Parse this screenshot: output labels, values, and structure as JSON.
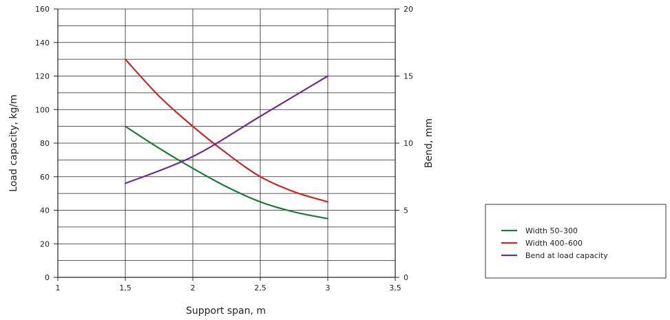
{
  "chart_data": {
    "type": "line",
    "xlabel": "Support span, m",
    "ylabel_left": "Load capacity, kg/m",
    "ylabel_right": "Bend, mm",
    "x_ticks": [
      1,
      1.5,
      2,
      2.5,
      3,
      3.5
    ],
    "x_tick_labels": [
      "1",
      "1,5",
      "2",
      "2,5",
      "3",
      "3,5"
    ],
    "xlim": [
      1,
      3.5
    ],
    "ylim_left": [
      0,
      160
    ],
    "y_left_ticks": [
      0,
      20,
      40,
      60,
      80,
      100,
      120,
      140,
      160
    ],
    "y_left_tick_labels": [
      "0",
      "20",
      "40",
      "60",
      "80",
      "100",
      "120",
      "140",
      "160"
    ],
    "ylim_right": [
      0,
      20
    ],
    "y_right_ticks": [
      0,
      5,
      10,
      15,
      20
    ],
    "y_right_tick_labels": [
      "0",
      "5",
      "10",
      "15",
      "20"
    ],
    "grid": true,
    "legend_position": "right",
    "series": [
      {
        "name": "Width 50–300",
        "axis": "left",
        "color": "#1b7a3a",
        "x": [
          1.5,
          1.75,
          2,
          2.25,
          2.5,
          2.75,
          3
        ],
        "y": [
          90,
          77,
          65,
          54,
          45,
          39,
          35
        ]
      },
      {
        "name": "Width 400–600",
        "axis": "left",
        "color": "#c62828",
        "x": [
          1.5,
          1.75,
          2,
          2.25,
          2.5,
          2.75,
          3
        ],
        "y": [
          130,
          108,
          90,
          74,
          60,
          51,
          45
        ]
      },
      {
        "name": "Bend at load capacity",
        "axis": "right",
        "color": "#6a2c9a",
        "x": [
          1.5,
          2,
          2.5,
          3
        ],
        "y": [
          7,
          9,
          12,
          15
        ]
      }
    ]
  }
}
